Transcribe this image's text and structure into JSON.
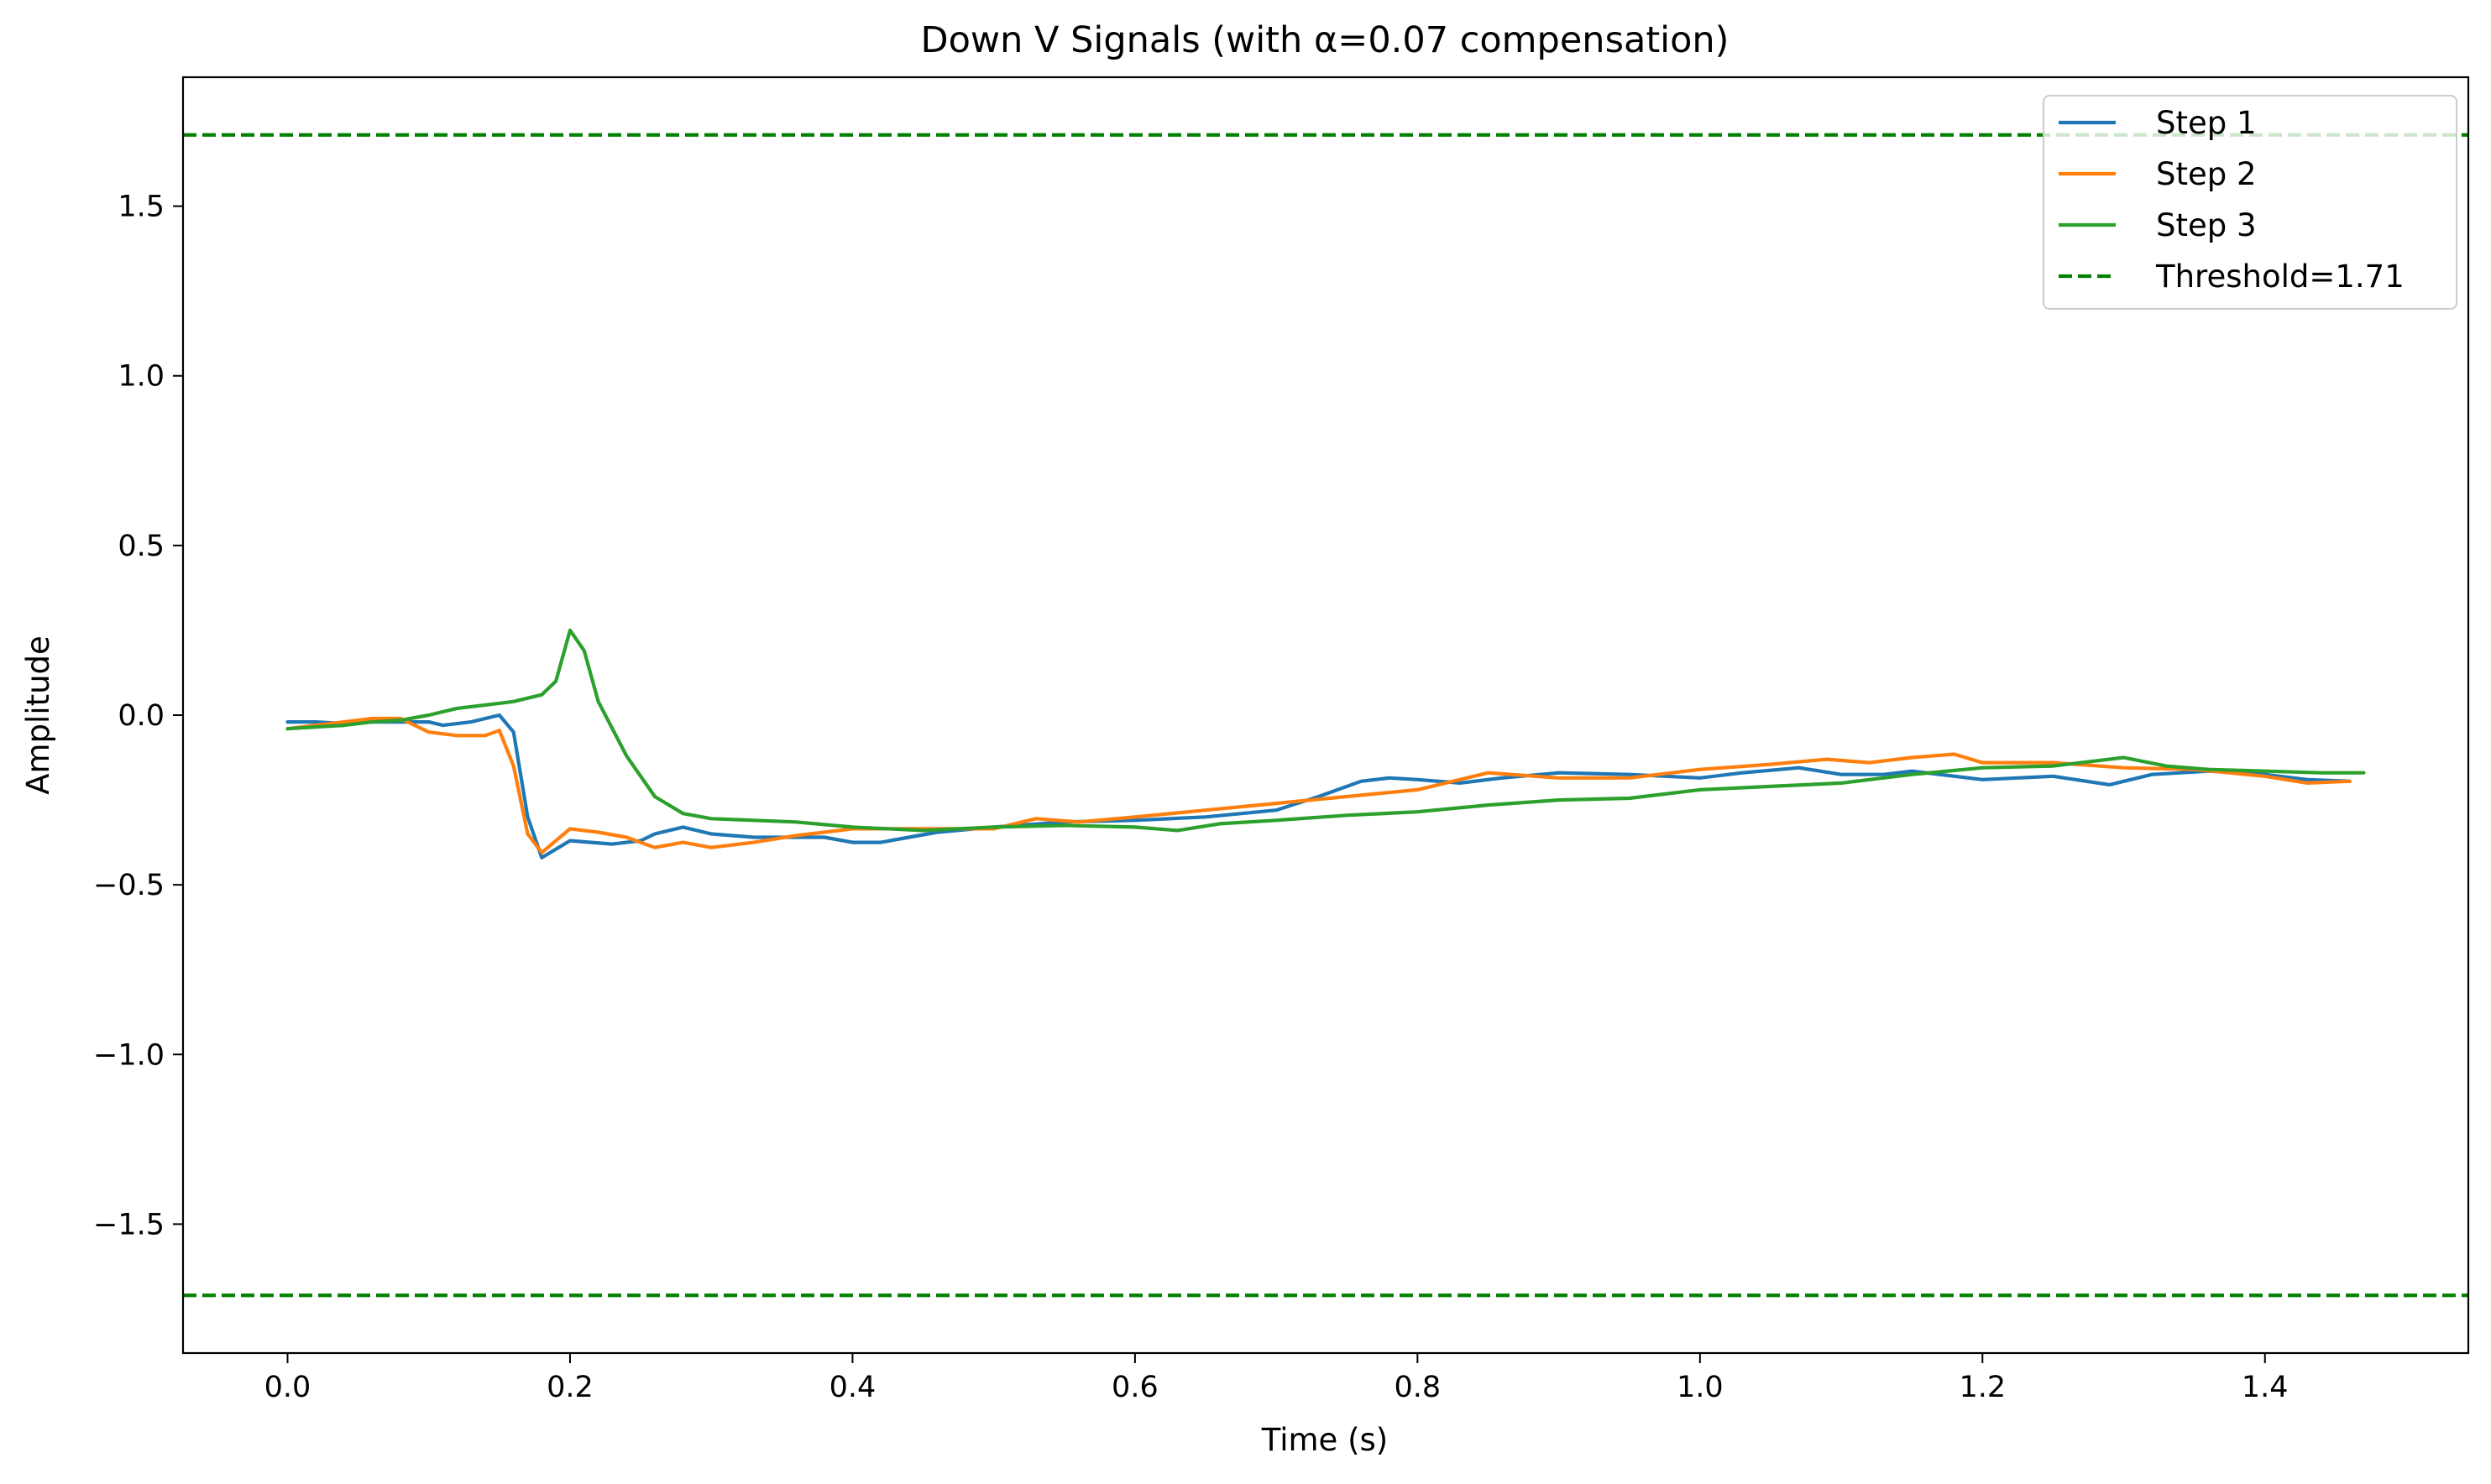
{
  "chart_data": {
    "type": "line",
    "title": "Down V Signals (with α=0.07 compensation)",
    "xlabel": "Time (s)",
    "ylabel": "Amplitude",
    "xlim": [
      -0.074,
      1.544
    ],
    "ylim": [
      -1.88,
      1.88
    ],
    "x_ticks": [
      0.0,
      0.2,
      0.4,
      0.6,
      0.8,
      1.0,
      1.2,
      1.4
    ],
    "x_tick_labels": [
      "0.0",
      "0.2",
      "0.4",
      "0.6",
      "0.8",
      "1.0",
      "1.2",
      "1.4"
    ],
    "y_ticks": [
      1.5,
      1.0,
      0.5,
      0.0,
      -0.5,
      -1.0,
      -1.5
    ],
    "y_tick_labels": [
      "1.5",
      "1.0",
      "0.5",
      "0.0",
      "−0.5",
      "−1.0",
      "−1.5"
    ],
    "grid": false,
    "legend_position": "top-right",
    "series": [
      {
        "name": "Step 1",
        "color": "#1f77b4",
        "style": "solid",
        "points": [
          [
            0.0,
            -0.02
          ],
          [
            0.02,
            -0.02
          ],
          [
            0.04,
            -0.025
          ],
          [
            0.06,
            -0.02
          ],
          [
            0.08,
            -0.02
          ],
          [
            0.1,
            -0.02
          ],
          [
            0.11,
            -0.03
          ],
          [
            0.13,
            -0.02
          ],
          [
            0.15,
            0.0
          ],
          [
            0.16,
            -0.05
          ],
          [
            0.17,
            -0.3
          ],
          [
            0.18,
            -0.42
          ],
          [
            0.2,
            -0.37
          ],
          [
            0.23,
            -0.38
          ],
          [
            0.25,
            -0.37
          ],
          [
            0.26,
            -0.35
          ],
          [
            0.28,
            -0.33
          ],
          [
            0.3,
            -0.35
          ],
          [
            0.33,
            -0.36
          ],
          [
            0.36,
            -0.36
          ],
          [
            0.38,
            -0.36
          ],
          [
            0.4,
            -0.375
          ],
          [
            0.42,
            -0.375
          ],
          [
            0.44,
            -0.36
          ],
          [
            0.46,
            -0.345
          ],
          [
            0.5,
            -0.33
          ],
          [
            0.55,
            -0.315
          ],
          [
            0.6,
            -0.31
          ],
          [
            0.65,
            -0.3
          ],
          [
            0.7,
            -0.28
          ],
          [
            0.73,
            -0.24
          ],
          [
            0.76,
            -0.195
          ],
          [
            0.78,
            -0.185
          ],
          [
            0.8,
            -0.19
          ],
          [
            0.83,
            -0.2
          ],
          [
            0.86,
            -0.185
          ],
          [
            0.9,
            -0.17
          ],
          [
            0.95,
            -0.175
          ],
          [
            1.0,
            -0.185
          ],
          [
            1.03,
            -0.17
          ],
          [
            1.07,
            -0.155
          ],
          [
            1.1,
            -0.175
          ],
          [
            1.13,
            -0.175
          ],
          [
            1.15,
            -0.165
          ],
          [
            1.2,
            -0.19
          ],
          [
            1.25,
            -0.18
          ],
          [
            1.29,
            -0.205
          ],
          [
            1.32,
            -0.175
          ],
          [
            1.36,
            -0.165
          ],
          [
            1.4,
            -0.175
          ],
          [
            1.43,
            -0.19
          ],
          [
            1.46,
            -0.195
          ]
        ]
      },
      {
        "name": "Step 2",
        "color": "#ff7f0e",
        "style": "solid",
        "points": [
          [
            0.0,
            -0.04
          ],
          [
            0.02,
            -0.03
          ],
          [
            0.04,
            -0.02
          ],
          [
            0.06,
            -0.01
          ],
          [
            0.08,
            -0.01
          ],
          [
            0.1,
            -0.05
          ],
          [
            0.12,
            -0.06
          ],
          [
            0.14,
            -0.06
          ],
          [
            0.15,
            -0.045
          ],
          [
            0.16,
            -0.15
          ],
          [
            0.17,
            -0.35
          ],
          [
            0.18,
            -0.405
          ],
          [
            0.2,
            -0.335
          ],
          [
            0.22,
            -0.345
          ],
          [
            0.24,
            -0.36
          ],
          [
            0.26,
            -0.39
          ],
          [
            0.28,
            -0.375
          ],
          [
            0.3,
            -0.39
          ],
          [
            0.33,
            -0.375
          ],
          [
            0.36,
            -0.355
          ],
          [
            0.4,
            -0.335
          ],
          [
            0.45,
            -0.335
          ],
          [
            0.5,
            -0.335
          ],
          [
            0.53,
            -0.305
          ],
          [
            0.56,
            -0.315
          ],
          [
            0.6,
            -0.3
          ],
          [
            0.65,
            -0.28
          ],
          [
            0.7,
            -0.26
          ],
          [
            0.75,
            -0.24
          ],
          [
            0.8,
            -0.22
          ],
          [
            0.85,
            -0.17
          ],
          [
            0.9,
            -0.185
          ],
          [
            0.95,
            -0.185
          ],
          [
            1.0,
            -0.16
          ],
          [
            1.05,
            -0.145
          ],
          [
            1.09,
            -0.13
          ],
          [
            1.12,
            -0.14
          ],
          [
            1.15,
            -0.125
          ],
          [
            1.18,
            -0.115
          ],
          [
            1.2,
            -0.14
          ],
          [
            1.25,
            -0.14
          ],
          [
            1.3,
            -0.155
          ],
          [
            1.35,
            -0.16
          ],
          [
            1.4,
            -0.18
          ],
          [
            1.43,
            -0.2
          ],
          [
            1.46,
            -0.195
          ]
        ]
      },
      {
        "name": "Step 3",
        "color": "#2ca02c",
        "style": "solid",
        "points": [
          [
            0.0,
            -0.04
          ],
          [
            0.02,
            -0.035
          ],
          [
            0.04,
            -0.03
          ],
          [
            0.06,
            -0.02
          ],
          [
            0.08,
            -0.015
          ],
          [
            0.1,
            0.0
          ],
          [
            0.12,
            0.02
          ],
          [
            0.14,
            0.03
          ],
          [
            0.16,
            0.04
          ],
          [
            0.18,
            0.06
          ],
          [
            0.19,
            0.1
          ],
          [
            0.2,
            0.25
          ],
          [
            0.21,
            0.19
          ],
          [
            0.22,
            0.04
          ],
          [
            0.24,
            -0.12
          ],
          [
            0.26,
            -0.24
          ],
          [
            0.28,
            -0.29
          ],
          [
            0.3,
            -0.305
          ],
          [
            0.33,
            -0.31
          ],
          [
            0.36,
            -0.315
          ],
          [
            0.4,
            -0.33
          ],
          [
            0.45,
            -0.34
          ],
          [
            0.5,
            -0.33
          ],
          [
            0.55,
            -0.325
          ],
          [
            0.6,
            -0.33
          ],
          [
            0.63,
            -0.34
          ],
          [
            0.66,
            -0.32
          ],
          [
            0.7,
            -0.31
          ],
          [
            0.75,
            -0.295
          ],
          [
            0.8,
            -0.285
          ],
          [
            0.85,
            -0.265
          ],
          [
            0.9,
            -0.25
          ],
          [
            0.95,
            -0.245
          ],
          [
            1.0,
            -0.22
          ],
          [
            1.05,
            -0.21
          ],
          [
            1.1,
            -0.2
          ],
          [
            1.15,
            -0.175
          ],
          [
            1.2,
            -0.155
          ],
          [
            1.25,
            -0.15
          ],
          [
            1.28,
            -0.135
          ],
          [
            1.3,
            -0.125
          ],
          [
            1.33,
            -0.15
          ],
          [
            1.36,
            -0.16
          ],
          [
            1.4,
            -0.165
          ],
          [
            1.44,
            -0.17
          ],
          [
            1.47,
            -0.17
          ]
        ]
      },
      {
        "name": "Threshold=1.71",
        "color": "#008000",
        "style": "dashed",
        "hlines": [
          1.71,
          -1.71
        ]
      }
    ]
  }
}
